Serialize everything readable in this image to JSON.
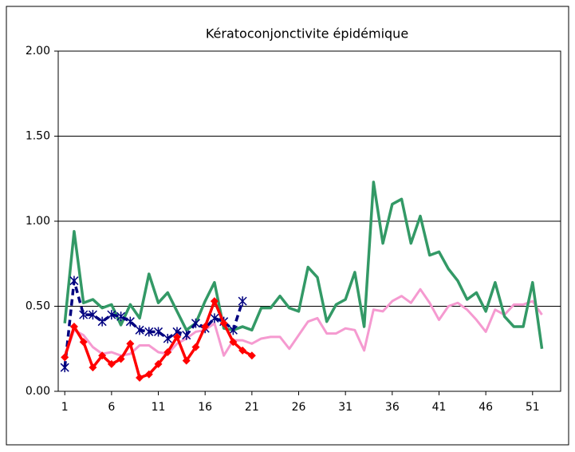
{
  "chart_data": {
    "type": "line",
    "title": "Kératoconjonctivite  épidémique",
    "xlim": [
      0.3,
      54.0
    ],
    "xticks": [
      1,
      6,
      11,
      16,
      21,
      26,
      31,
      36,
      41,
      46,
      51
    ],
    "ylim": [
      0,
      2
    ],
    "yticks": [
      {
        "value": 0,
        "label": "0.00"
      },
      {
        "value": 0.5,
        "label": "0.50"
      },
      {
        "value": 1,
        "label": "1.00"
      },
      {
        "value": 1.5,
        "label": "1.50"
      },
      {
        "value": 2,
        "label": "2.00"
      }
    ],
    "grid": true,
    "series": [
      {
        "color": "#f59ad0",
        "marker": "none",
        "dash": false,
        "width": 3,
        "x": [
          1,
          2,
          3,
          4,
          5,
          6,
          7,
          8,
          9,
          10,
          11,
          12,
          13,
          14,
          15,
          16,
          17,
          18,
          19,
          20,
          21,
          22,
          23,
          24,
          25,
          26,
          27,
          28,
          29,
          30,
          31,
          32,
          33,
          34,
          35,
          36,
          37,
          38,
          39,
          40,
          41,
          42,
          43,
          44,
          45,
          46,
          47,
          48,
          49,
          50,
          51,
          52
        ],
        "values": [
          0.2,
          0.36,
          0.33,
          0.26,
          0.22,
          0.23,
          0.21,
          0.22,
          0.27,
          0.27,
          0.23,
          0.22,
          0.28,
          0.31,
          0.35,
          0.36,
          0.4,
          0.21,
          0.3,
          0.3,
          0.28,
          0.31,
          0.32,
          0.32,
          0.25,
          0.33,
          0.41,
          0.43,
          0.34,
          0.34,
          0.37,
          0.36,
          0.24,
          0.48,
          0.47,
          0.53,
          0.56,
          0.52,
          0.6,
          0.52,
          0.42,
          0.5,
          0.52,
          0.48,
          0.42,
          0.35,
          0.48,
          0.45,
          0.51,
          0.51,
          0.53,
          0.45
        ]
      },
      {
        "color": "#339966",
        "marker": "none",
        "dash": false,
        "width": 3.5,
        "x": [
          1,
          2,
          3,
          4,
          5,
          6,
          7,
          8,
          9,
          10,
          11,
          12,
          13,
          14,
          15,
          16,
          17,
          18,
          19,
          20,
          21,
          22,
          23,
          24,
          25,
          26,
          27,
          28,
          29,
          30,
          31,
          32,
          33,
          34,
          35,
          36,
          37,
          38,
          39,
          40,
          41,
          42,
          43,
          44,
          45,
          46,
          47,
          48,
          49,
          50,
          51,
          52
        ],
        "values": [
          0.4,
          0.94,
          0.52,
          0.54,
          0.49,
          0.51,
          0.39,
          0.51,
          0.43,
          0.69,
          0.52,
          0.58,
          0.47,
          0.36,
          0.4,
          0.53,
          0.64,
          0.37,
          0.36,
          0.38,
          0.36,
          0.49,
          0.49,
          0.56,
          0.49,
          0.47,
          0.73,
          0.67,
          0.41,
          0.51,
          0.54,
          0.7,
          0.38,
          1.23,
          0.87,
          1.1,
          1.13,
          0.87,
          1.03,
          0.8,
          0.82,
          0.72,
          0.65,
          0.54,
          0.58,
          0.47,
          0.64,
          0.44,
          0.38,
          0.38,
          0.64,
          0.25
        ]
      },
      {
        "color": "#000080",
        "marker": "star",
        "dash": true,
        "width": 3.5,
        "x": [
          1,
          2,
          3,
          4,
          5,
          6,
          7,
          8,
          9,
          10,
          11,
          12,
          13,
          14,
          15,
          16,
          17,
          18,
          19,
          20
        ],
        "values": [
          0.14,
          0.65,
          0.45,
          0.45,
          0.41,
          0.45,
          0.44,
          0.41,
          0.36,
          0.35,
          0.35,
          0.31,
          0.35,
          0.33,
          0.4,
          0.37,
          0.43,
          0.41,
          0.36,
          0.53
        ]
      },
      {
        "color": "#ff0000",
        "marker": "diamond",
        "dash": false,
        "width": 3.5,
        "x": [
          1,
          2,
          3,
          4,
          5,
          6,
          7,
          8,
          9,
          10,
          11,
          12,
          13,
          14,
          15,
          16,
          17,
          18,
          19,
          20,
          21
        ],
        "values": [
          0.2,
          0.38,
          0.29,
          0.14,
          0.21,
          0.16,
          0.19,
          0.28,
          0.08,
          0.1,
          0.16,
          0.23,
          0.32,
          0.18,
          0.26,
          0.38,
          0.53,
          0.4,
          0.29,
          0.24,
          0.21
        ]
      }
    ]
  }
}
